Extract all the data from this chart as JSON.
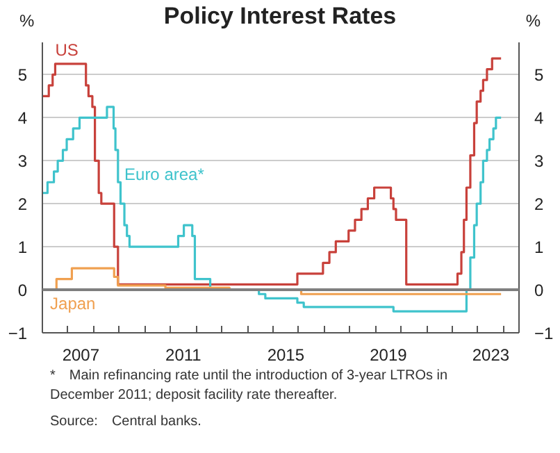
{
  "chart_data": {
    "type": "step",
    "title": "Policy Interest Rates",
    "ylabel": "%",
    "y2label": "%",
    "xlim": [
      2006,
      2024.6
    ],
    "ylim": [
      -1,
      5.75
    ],
    "y2lim": [
      -1,
      5.75
    ],
    "xticks": [
      {
        "value": 2007.5,
        "label": "2007"
      },
      {
        "value": 2011.5,
        "label": "2011"
      },
      {
        "value": 2015.5,
        "label": "2015"
      },
      {
        "value": 2019.5,
        "label": "2019"
      },
      {
        "value": 2023.5,
        "label": "2023"
      },
      {
        "value": 2007,
        "label": null
      },
      {
        "value": 2008,
        "label": null
      },
      {
        "value": 2009,
        "label": null
      },
      {
        "value": 2010,
        "label": null
      },
      {
        "value": 2011,
        "label": null
      },
      {
        "value": 2012,
        "label": null
      },
      {
        "value": 2013,
        "label": null
      },
      {
        "value": 2014,
        "label": null
      },
      {
        "value": 2015,
        "label": null
      },
      {
        "value": 2016,
        "label": null
      },
      {
        "value": 2017,
        "label": null
      },
      {
        "value": 2018,
        "label": null
      },
      {
        "value": 2019,
        "label": null
      },
      {
        "value": 2020,
        "label": null
      },
      {
        "value": 2021,
        "label": null
      },
      {
        "value": 2022,
        "label": null
      },
      {
        "value": 2023,
        "label": null
      },
      {
        "value": 2024,
        "label": null
      }
    ],
    "yticks": [
      -1,
      0,
      1,
      2,
      3,
      4,
      5
    ],
    "y2ticks": [
      -1,
      0,
      1,
      2,
      3,
      4,
      5
    ],
    "grid": "y",
    "ref_lines": [
      {
        "axis": "y",
        "value": 0,
        "label": null,
        "color": "#7f7f7f"
      }
    ],
    "series": [
      {
        "name": "US",
        "color": "#c8413b",
        "x": [
          2006.0,
          2006.25,
          2006.4,
          2006.5,
          2007.7,
          2007.8,
          2007.95,
          2008.05,
          2008.2,
          2008.3,
          2008.8,
          2008.95,
          2015.95,
          2016.95,
          2017.2,
          2017.45,
          2017.95,
          2018.2,
          2018.45,
          2018.7,
          2018.95,
          2019.6,
          2019.7,
          2019.8,
          2020.2,
          2022.2,
          2022.35,
          2022.45,
          2022.55,
          2022.7,
          2022.85,
          2022.95,
          2023.1,
          2023.2,
          2023.35,
          2023.55,
          2023.9
        ],
        "values": [
          4.5,
          4.75,
          5.0,
          5.25,
          4.75,
          4.5,
          4.25,
          3.0,
          2.25,
          2.0,
          1.0,
          0.125,
          0.375,
          0.625,
          0.875,
          1.125,
          1.375,
          1.625,
          1.875,
          2.125,
          2.375,
          2.125,
          1.875,
          1.625,
          0.125,
          0.375,
          0.875,
          1.625,
          2.375,
          3.125,
          3.875,
          4.375,
          4.625,
          4.875,
          5.125,
          5.375,
          5.375
        ]
      },
      {
        "name": "Euro area*",
        "color": "#3fc3cc",
        "x": [
          2006.0,
          2006.2,
          2006.45,
          2006.6,
          2006.8,
          2006.95,
          2007.2,
          2007.45,
          2008.52,
          2008.78,
          2008.85,
          2008.95,
          2009.05,
          2009.2,
          2009.3,
          2009.4,
          2011.3,
          2011.52,
          2011.85,
          2011.95,
          2012.55,
          2014.45,
          2014.7,
          2015.95,
          2016.2,
          2019.7,
          2022.55,
          2022.7,
          2022.85,
          2022.95,
          2023.1,
          2023.2,
          2023.35,
          2023.45,
          2023.6,
          2023.7,
          2023.9
        ],
        "values": [
          2.25,
          2.5,
          2.75,
          3.0,
          3.25,
          3.5,
          3.75,
          4.0,
          4.25,
          3.75,
          3.25,
          2.5,
          2.0,
          1.5,
          1.25,
          1.0,
          1.25,
          1.5,
          1.25,
          0.25,
          0.0,
          -0.1,
          -0.2,
          -0.3,
          -0.4,
          -0.5,
          0.0,
          0.75,
          1.5,
          2.0,
          2.5,
          3.0,
          3.25,
          3.5,
          3.75,
          4.0,
          4.0
        ]
      },
      {
        "name": "Japan",
        "color": "#f0a050",
        "x": [
          2006.0,
          2006.55,
          2007.15,
          2008.8,
          2008.95,
          2010.8,
          2013.3,
          2016.1,
          2023.9
        ],
        "values": [
          0.0,
          0.25,
          0.5,
          0.3,
          0.1,
          0.05,
          0.0,
          -0.1,
          -0.1
        ]
      }
    ],
    "annotations": [
      "* Main refinancing rate until the introduction of 3-year LTROs in December 2011; deposit facility rate thereafter.",
      "Source: Central banks."
    ]
  }
}
